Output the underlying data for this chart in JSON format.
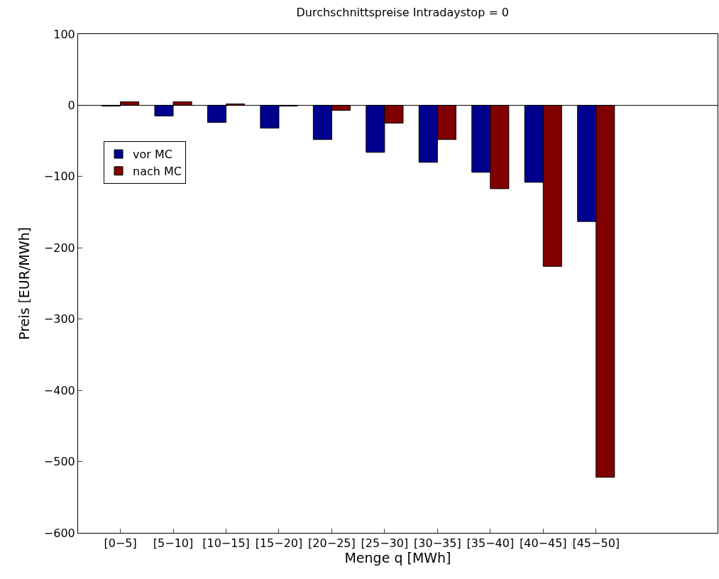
{
  "chart_data": {
    "type": "bar",
    "title": "Durchschnittspreise Intradaystop = 0",
    "xlabel": "Menge q [MWh]",
    "ylabel": "Preis [EUR/MWh]",
    "categories": [
      "[0−5]",
      "[5−10]",
      "[10−15]",
      "[15−20]",
      "[20−25]",
      "[25−30]",
      "[30−35]",
      "[35−40]",
      "[40−45]",
      "[45−50]",
      null
    ],
    "series": [
      {
        "name": "vor MC",
        "color": "#00008f",
        "values": [
          -1,
          -15,
          -24,
          -32,
          -48,
          -66,
          -80,
          -94,
          -108,
          -163,
          null
        ]
      },
      {
        "name": "nach MC",
        "color": "#800000",
        "values": [
          5,
          5,
          2,
          -1,
          -7,
          -25,
          -48,
          -117,
          -226,
          -522,
          null
        ]
      }
    ],
    "ylim": [
      -600,
      100
    ],
    "yticks": [
      -600,
      -500,
      -400,
      -300,
      -200,
      -100,
      0,
      100
    ],
    "ref_lines": [
      {
        "axis": "y",
        "value": 0,
        "color": "#000000"
      }
    ],
    "legend": "top left"
  }
}
